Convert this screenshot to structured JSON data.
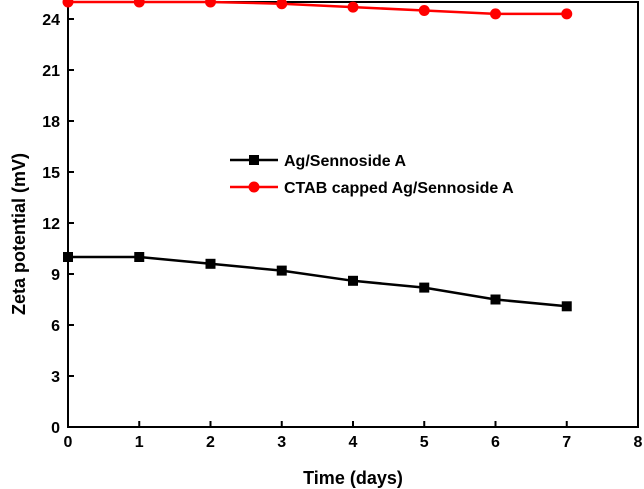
{
  "chart_data": {
    "type": "line",
    "title": "",
    "xlabel": "Time (days)",
    "ylabel": "Zeta potential (mV)",
    "xlim": [
      0,
      8
    ],
    "ylim": [
      0,
      25
    ],
    "xticks": [
      0,
      1,
      2,
      3,
      4,
      5,
      6,
      7,
      8
    ],
    "yticks": [
      0,
      3,
      6,
      9,
      12,
      15,
      18,
      21,
      24
    ],
    "xtick_labels": [
      "0",
      "1",
      "2",
      "3",
      "4",
      "5",
      "6",
      "7",
      "8"
    ],
    "ytick_labels": [
      "0",
      "3",
      "6",
      "9",
      "12",
      "15",
      "18",
      "21",
      "24"
    ],
    "grid": false,
    "legend_position": "center",
    "x": [
      0,
      1,
      2,
      3,
      4,
      5,
      6,
      7
    ],
    "series": [
      {
        "name": "Ag/Sennoside A",
        "color": "#000000",
        "marker": "square",
        "values": [
          10.0,
          10.0,
          9.6,
          9.2,
          8.6,
          8.2,
          7.5,
          7.1
        ]
      },
      {
        "name": "CTAB capped Ag/Sennoside A",
        "color": "#ff0000",
        "marker": "circle",
        "values": [
          25.0,
          25.0,
          25.0,
          24.9,
          24.7,
          24.5,
          24.3,
          24.3
        ]
      }
    ]
  }
}
